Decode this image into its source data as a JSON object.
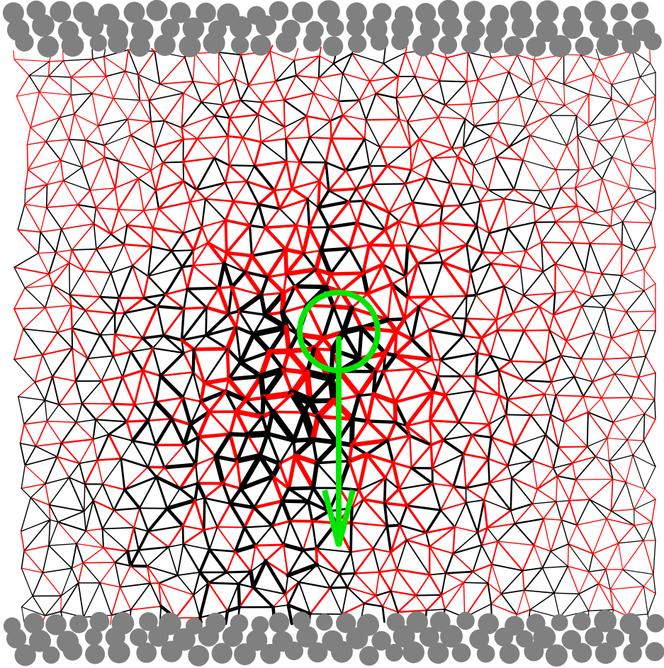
{
  "figure": {
    "description_free": true,
    "colors": {
      "background": "#ffffff",
      "compressive_bond": "#000000",
      "tensile_bond": "#ff0000",
      "wall_particle": "#808080",
      "probe": "#00e600"
    },
    "boundaries": [
      {
        "name": "top-wall",
        "rows": 3
      },
      {
        "name": "bottom-wall",
        "rows": 3
      }
    ],
    "probe": {
      "shape": "circle-with-arrow",
      "direction": "down"
    }
  }
}
